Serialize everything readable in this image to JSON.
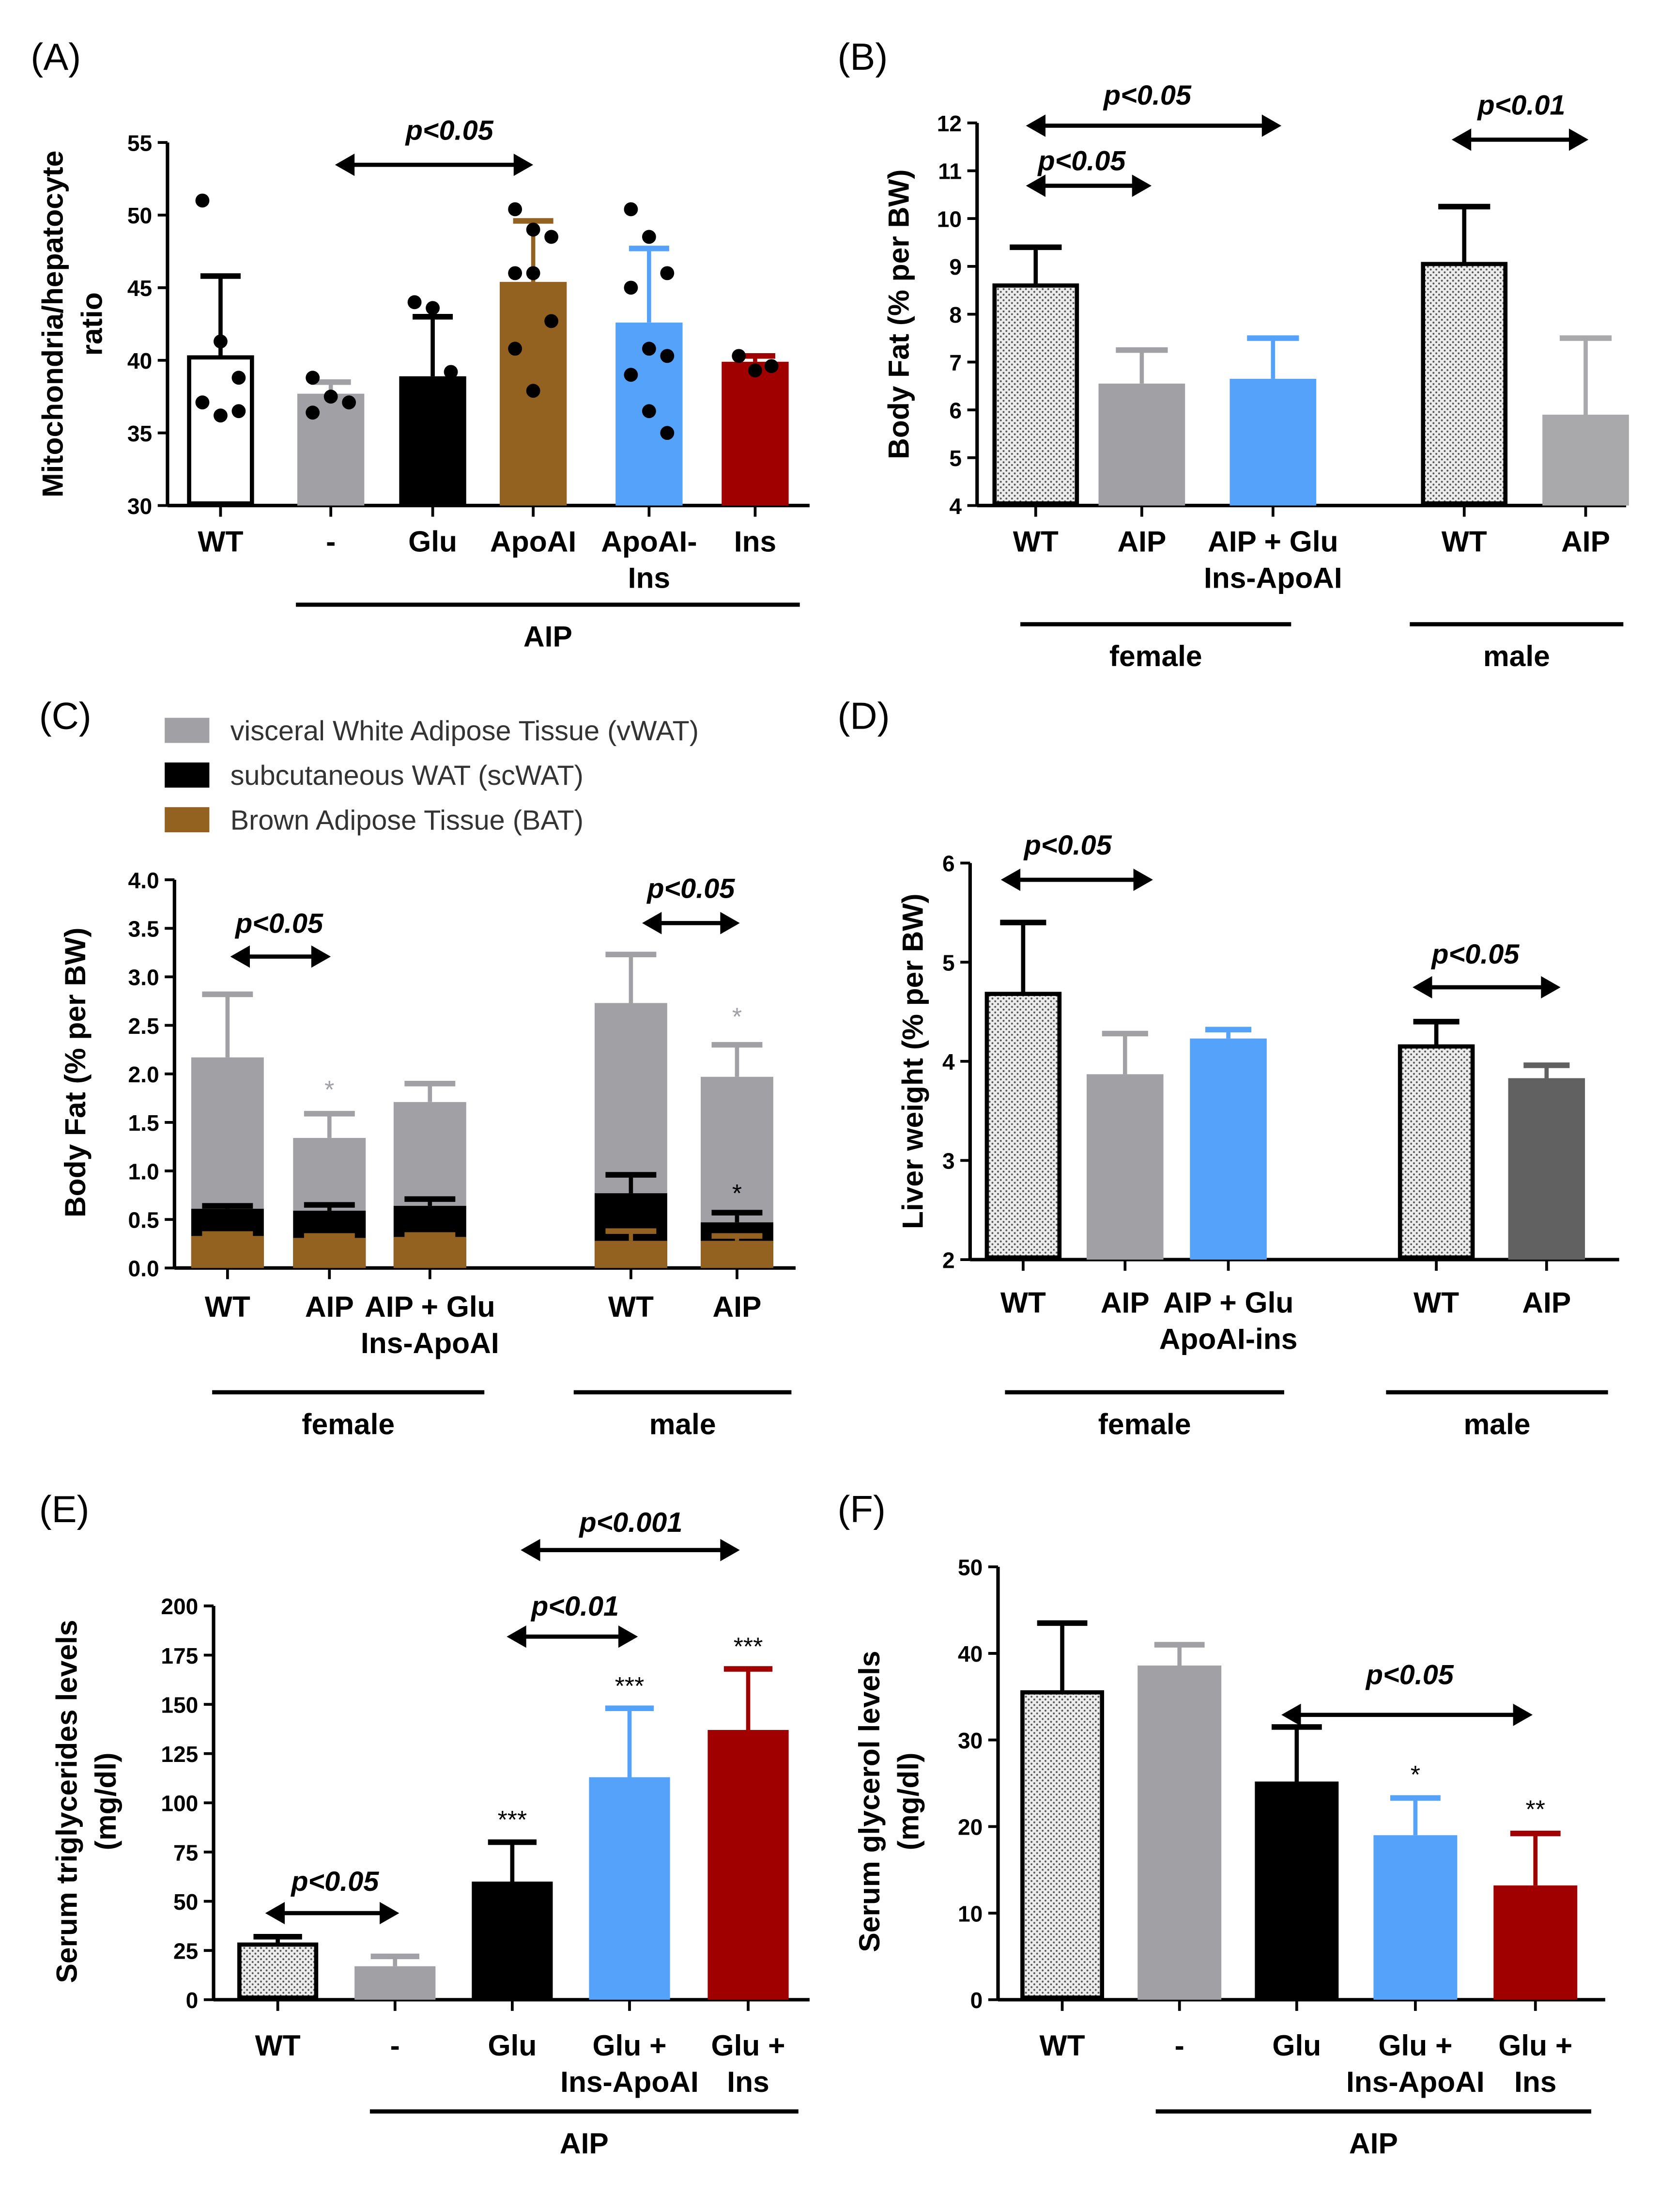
{
  "colors": {
    "white": "#ffffff",
    "gray": "#a1a1a5",
    "black": "#000000",
    "brown": "#946220",
    "blue": "#55a2fa",
    "red": "#a00000",
    "lightgray": "#a9a9ab",
    "darkgray": "#616161",
    "dotted": "#e6e6e6"
  },
  "chart_data": [
    {
      "id": "A",
      "label": "(A)",
      "type": "bar",
      "ylabel": [
        "Mitochondria/hepatocyte",
        "ratio"
      ],
      "ylim": [
        30,
        55
      ],
      "yticks": [
        "30",
        "35",
        "40",
        "45",
        "50",
        "55"
      ],
      "categories": [
        [
          "WT"
        ],
        [
          "-"
        ],
        [
          "Glu"
        ],
        [
          "ApoAI"
        ],
        [
          "ApoAI-",
          "Ins"
        ],
        [
          "Ins"
        ]
      ],
      "bars": [
        {
          "value": 40.2,
          "error": 45.8,
          "color": "white",
          "points": [
            51,
            41.3,
            38.8,
            37.1,
            36.2,
            36.5
          ]
        },
        {
          "value": 37.7,
          "error": 38.5,
          "color": "gray",
          "points": [
            38.8,
            37.5,
            37.1,
            36.4
          ]
        },
        {
          "value": 38.9,
          "error": 43,
          "color": "black",
          "points": [
            44,
            43.6,
            39.2,
            36.5,
            35,
            34.3
          ]
        },
        {
          "value": 45.4,
          "error": 49.6,
          "color": "brown",
          "points": [
            50.4,
            49,
            48.5,
            46,
            46,
            42.7,
            40.8,
            37.9
          ]
        },
        {
          "value": 42.6,
          "error": 47.7,
          "color": "blue",
          "points": [
            50.4,
            48.5,
            46,
            45,
            40.8,
            40.3,
            39,
            36.5,
            35
          ]
        },
        {
          "value": 39.9,
          "error": 40.3,
          "color": "red",
          "points": [
            40.3,
            39.3,
            39.6
          ]
        }
      ],
      "groups": [
        "AIP"
      ],
      "annotations": [
        "p<0.05"
      ],
      "stars": []
    },
    {
      "id": "B",
      "label": "(B)",
      "type": "bar",
      "ylabel": [
        "Body Fat (% per BW)"
      ],
      "ylim": [
        4,
        12
      ],
      "yticks": [
        "4",
        "5",
        "6",
        "7",
        "8",
        "9",
        "10",
        "11",
        "12"
      ],
      "categories": [
        [
          "WT"
        ],
        [
          "AIP"
        ],
        [
          "AIP + Glu",
          "Ins-ApoAI"
        ],
        [
          "WT"
        ],
        [
          "AIP"
        ]
      ],
      "bars": [
        {
          "value": 8.6,
          "error": 9.4,
          "color": "dotted"
        },
        {
          "value": 6.55,
          "error": 7.25,
          "color": "gray"
        },
        {
          "value": 6.65,
          "error": 7.5,
          "color": "blue"
        },
        {
          "value": 9.05,
          "error": 10.25,
          "color": "dotted"
        },
        {
          "value": 5.9,
          "error": 7.5,
          "color": "lightgray"
        }
      ],
      "groups": [
        "female",
        "male"
      ],
      "annotations": [
        "p<0.05",
        "p<0.05",
        "p<0.01"
      ],
      "stars": []
    },
    {
      "id": "C",
      "label": "(C)",
      "type": "stacked-bar",
      "ylabel": [
        "Body Fat (% per BW)"
      ],
      "ylim": [
        0,
        4
      ],
      "yticks": [
        "0.0",
        "0.5",
        "1.0",
        "1.5",
        "2.0",
        "2.5",
        "3.0",
        "3.5",
        "4.0"
      ],
      "legend": [
        {
          "name": "visceral White Adipose Tissue (vWAT)",
          "color": "gray"
        },
        {
          "name": "subcutaneous WAT (scWAT)",
          "color": "black"
        },
        {
          "name": "Brown Adipose Tissue (BAT)",
          "color": "brown"
        }
      ],
      "categories": [
        [
          "WT"
        ],
        [
          "AIP"
        ],
        [
          "AIP + Glu",
          "Ins-ApoAI"
        ],
        [
          "WT"
        ],
        [
          "AIP"
        ]
      ],
      "bars": [
        {
          "stack": [
            {
              "layer": "BAT",
              "top": 0.33,
              "error": 0.35,
              "color": "brown"
            },
            {
              "layer": "scWAT",
              "top": 0.61,
              "error": 0.64,
              "color": "black"
            },
            {
              "layer": "vWAT",
              "top": 2.17,
              "error": 2.82,
              "color": "gray"
            }
          ]
        },
        {
          "stack": [
            {
              "layer": "BAT",
              "top": 0.31,
              "error": 0.33,
              "color": "brown"
            },
            {
              "layer": "scWAT",
              "top": 0.59,
              "error": 0.65,
              "color": "black"
            },
            {
              "layer": "vWAT",
              "top": 1.34,
              "error": 1.59,
              "color": "gray"
            }
          ]
        },
        {
          "stack": [
            {
              "layer": "BAT",
              "top": 0.32,
              "error": 0.34,
              "color": "brown"
            },
            {
              "layer": "scWAT",
              "top": 0.64,
              "error": 0.71,
              "color": "black"
            },
            {
              "layer": "vWAT",
              "top": 1.71,
              "error": 1.9,
              "color": "gray"
            }
          ]
        },
        {
          "stack": [
            {
              "layer": "BAT",
              "top": 0.28,
              "error": 0.38,
              "color": "brown"
            },
            {
              "layer": "scWAT",
              "top": 0.77,
              "error": 0.96,
              "color": "black"
            },
            {
              "layer": "vWAT",
              "top": 2.73,
              "error": 3.23,
              "color": "gray"
            }
          ]
        },
        {
          "stack": [
            {
              "layer": "BAT",
              "top": 0.28,
              "error": 0.33,
              "color": "brown"
            },
            {
              "layer": "scWAT",
              "top": 0.47,
              "error": 0.57,
              "color": "black"
            },
            {
              "layer": "vWAT",
              "top": 1.97,
              "error": 2.3,
              "color": "gray"
            }
          ]
        }
      ],
      "groups": [
        "female",
        "male"
      ],
      "annotations": [
        "p<0.05",
        "p<0.05"
      ],
      "stars": [
        {
          "bar": 1,
          "text": "*",
          "color": "gray",
          "y": 1.75
        },
        {
          "bar": 4,
          "text": "*",
          "color": "gray",
          "y": 2.5
        },
        {
          "bar": 4,
          "text": "*",
          "color": "black",
          "y": 0.68
        }
      ]
    },
    {
      "id": "D",
      "label": "(D)",
      "type": "bar",
      "ylabel": [
        "Liver weight (% per BW)"
      ],
      "ylim": [
        2,
        6
      ],
      "yticks": [
        "2",
        "3",
        "4",
        "5",
        "6"
      ],
      "categories": [
        [
          "WT"
        ],
        [
          "AIP"
        ],
        [
          "AIP + Glu",
          "ApoAI-ins"
        ],
        [
          "WT"
        ],
        [
          "AIP"
        ]
      ],
      "bars": [
        {
          "value": 4.68,
          "error": 5.4,
          "color": "dotted"
        },
        {
          "value": 3.87,
          "error": 4.28,
          "color": "gray"
        },
        {
          "value": 4.23,
          "error": 4.32,
          "color": "blue"
        },
        {
          "value": 4.15,
          "error": 4.4,
          "color": "dotted"
        },
        {
          "value": 3.83,
          "error": 3.96,
          "color": "darkgray"
        }
      ],
      "groups": [
        "female",
        "male"
      ],
      "annotations": [
        "p<0.05",
        "p<0.05"
      ],
      "stars": []
    },
    {
      "id": "E",
      "label": "(E)",
      "type": "bar",
      "ylabel": [
        "Serum triglycerides levels",
        "(mg/dl)"
      ],
      "ylim": [
        0,
        200
      ],
      "yticks": [
        "0",
        "25",
        "50",
        "75",
        "100",
        "125",
        "150",
        "175",
        "200"
      ],
      "categories": [
        [
          "WT"
        ],
        [
          "-"
        ],
        [
          "Glu"
        ],
        [
          "Glu +",
          "Ins-ApoAI"
        ],
        [
          "Glu +",
          "Ins"
        ]
      ],
      "bars": [
        {
          "value": 28,
          "error": 32,
          "color": "dotted"
        },
        {
          "value": 17,
          "error": 22,
          "color": "gray"
        },
        {
          "value": 60,
          "error": 80,
          "color": "black"
        },
        {
          "value": 113,
          "error": 148,
          "color": "blue"
        },
        {
          "value": 137,
          "error": 168,
          "color": "red"
        }
      ],
      "groups": [
        "AIP"
      ],
      "annotations": [
        "p<0.001",
        "p<0.01",
        "p<0.05"
      ],
      "stars": [
        {
          "bar": 2,
          "text": "***",
          "color": "black",
          "y": 87
        },
        {
          "bar": 3,
          "text": "***",
          "color": "black",
          "y": 155
        },
        {
          "bar": 4,
          "text": "***",
          "color": "black",
          "y": 175
        }
      ]
    },
    {
      "id": "F",
      "label": "(F)",
      "type": "bar",
      "ylabel": [
        "Serum glycerol levels",
        "(mg/dl)"
      ],
      "ylim": [
        0,
        50
      ],
      "yticks": [
        "0",
        "10",
        "20",
        "30",
        "40",
        "50"
      ],
      "categories": [
        [
          "WT"
        ],
        [
          "-"
        ],
        [
          "Glu"
        ],
        [
          "Glu +",
          "Ins-ApoAI"
        ],
        [
          "Glu +",
          "Ins"
        ]
      ],
      "bars": [
        {
          "value": 35.5,
          "error": 43.5,
          "color": "dotted"
        },
        {
          "value": 38.6,
          "error": 41,
          "color": "gray"
        },
        {
          "value": 25.2,
          "error": 31.5,
          "color": "black"
        },
        {
          "value": 19,
          "error": 23.3,
          "color": "blue"
        },
        {
          "value": 13.2,
          "error": 19.2,
          "color": "red"
        }
      ],
      "groups": [
        "AIP"
      ],
      "annotations": [
        "p<0.05"
      ],
      "stars": [
        {
          "bar": 3,
          "text": "*",
          "color": "black",
          "y": 25
        },
        {
          "bar": 4,
          "text": "**",
          "color": "black",
          "y": 21
        }
      ]
    }
  ]
}
